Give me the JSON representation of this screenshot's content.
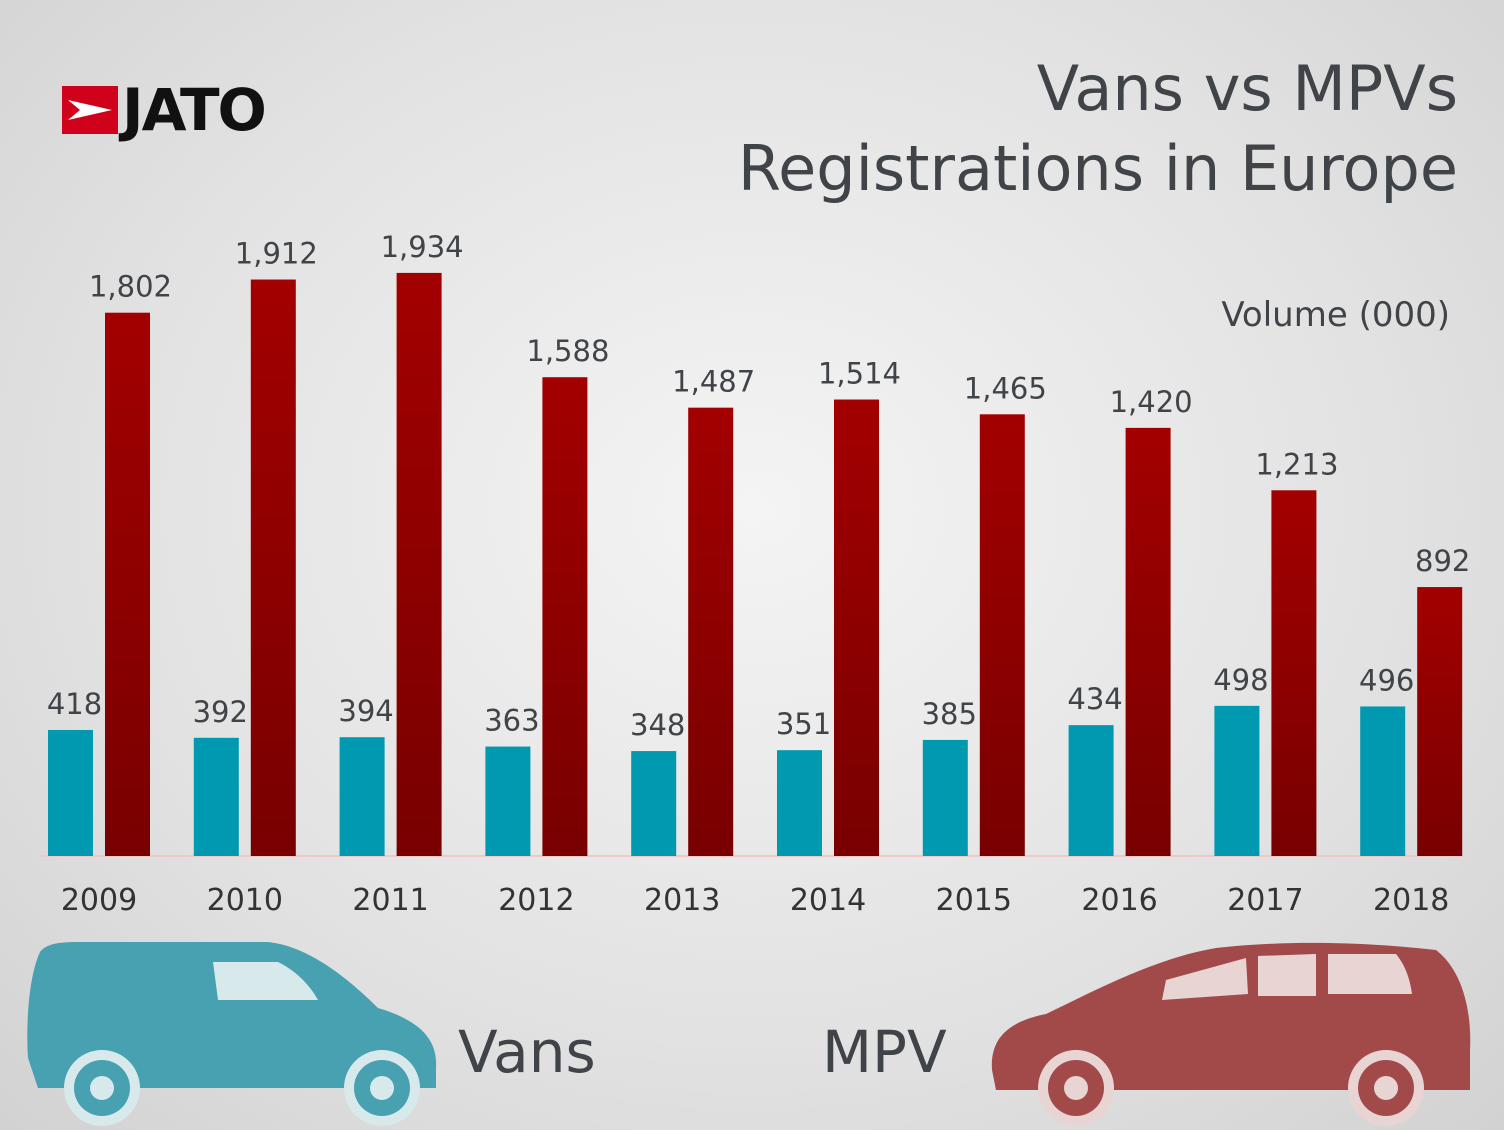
{
  "logo": {
    "text": "JATO"
  },
  "chart_data": {
    "type": "bar",
    "title": "Vans vs MPVs",
    "subtitle": "Registrations in Europe",
    "unit": "Volume (000)",
    "categories": [
      "2009",
      "2010",
      "2011",
      "2012",
      "2013",
      "2014",
      "2015",
      "2016",
      "2017",
      "2018"
    ],
    "series": [
      {
        "name": "Vans",
        "color": "#0099b0",
        "values": [
          418,
          392,
          394,
          363,
          348,
          351,
          385,
          434,
          498,
          496
        ]
      },
      {
        "name": "MPV",
        "color": "#a30000",
        "values": [
          1802,
          1912,
          1934,
          1588,
          1487,
          1514,
          1465,
          1420,
          1213,
          892
        ]
      }
    ],
    "ylim": [
      0,
      2000
    ],
    "grid": false,
    "legend_placement": "bottom"
  },
  "colors": {
    "mpv_bottom": "#7a0000",
    "van_car": "#47a1b1",
    "mpv_car": "#a24a4a"
  },
  "icons": {
    "van": "van-silhouette-icon",
    "mpv": "mpv-silhouette-icon"
  }
}
